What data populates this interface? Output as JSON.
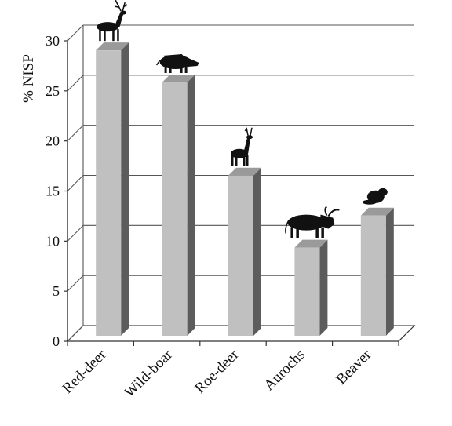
{
  "colors": {
    "bar_front": "#c0c0c0",
    "bar_top": "#9a9a9a",
    "bar_side": "#5c5c5c",
    "grid": "#555555",
    "axis": "#333333",
    "floor": "#ffffff",
    "silhouette": "#111111"
  },
  "chart_data": {
    "type": "bar",
    "title": "",
    "xlabel": "",
    "ylabel": "% NISP",
    "ylim": [
      0,
      30
    ],
    "yticks": [
      0,
      5,
      10,
      15,
      20,
      25,
      30
    ],
    "grid": true,
    "style": "3d-column",
    "categories": [
      "Red-deer",
      "Wild-boar",
      "Roe-deer",
      "Aurochs",
      "Beaver"
    ],
    "values": [
      28.5,
      25.3,
      16.0,
      8.8,
      12.0
    ],
    "icons": [
      "red-deer-icon",
      "wild-boar-icon",
      "roe-deer-icon",
      "aurochs-icon",
      "beaver-icon"
    ]
  }
}
